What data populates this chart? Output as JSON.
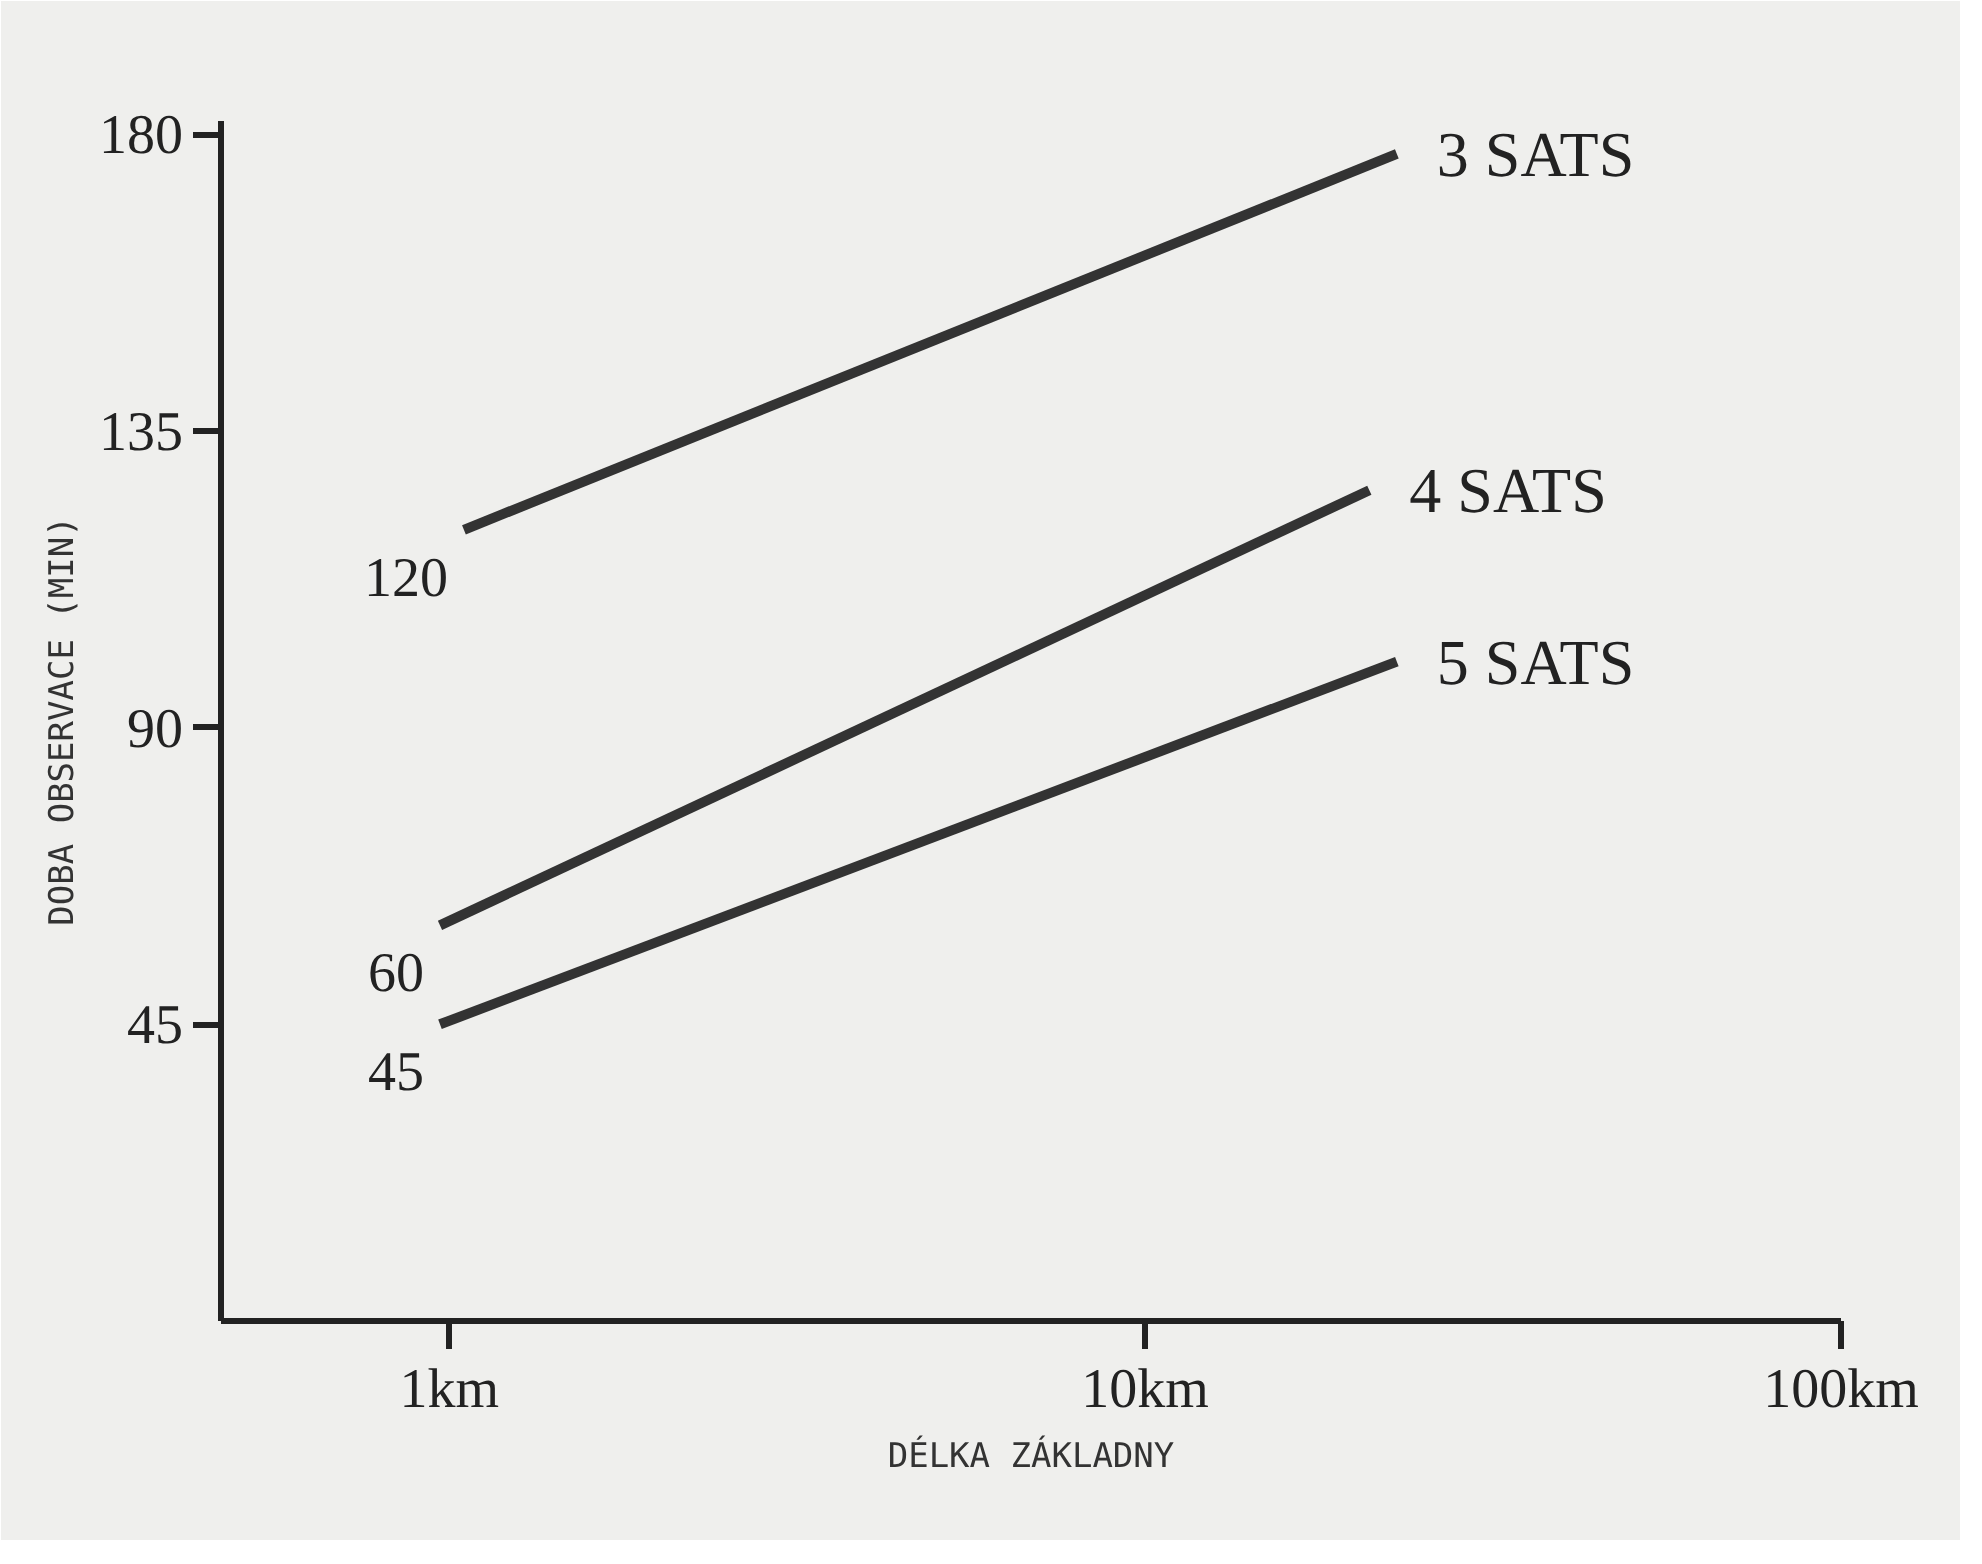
{
  "chart_data": {
    "type": "line",
    "xlabel": "DÉLKA ZÁKLADNY",
    "ylabel": "DOBA OBSERVACE (MIN)",
    "log": "x",
    "xlim": [
      0.47,
      100
    ],
    "xticks": [
      {
        "value": 1,
        "label": "1km"
      },
      {
        "value": 10,
        "label": "10km"
      },
      {
        "value": 100,
        "label": "100km"
      }
    ],
    "ylim": [
      0,
      182
    ],
    "yticks": [
      45,
      90,
      135,
      180
    ],
    "grid": false,
    "marker": "none",
    "line_style": "solid",
    "series": [
      {
        "name": "3 SATS",
        "color": "#333333",
        "x": [
          1.05,
          23
        ],
        "values": [
          120,
          177
        ],
        "value_labels": [
          "120",
          null
        ]
      },
      {
        "name": "4 SATS",
        "color": "#333333",
        "x": [
          0.97,
          21
        ],
        "values": [
          60,
          126
        ],
        "value_labels": [
          "60",
          null
        ]
      },
      {
        "name": "5 SATS",
        "color": "#333333",
        "x": [
          0.97,
          23
        ],
        "values": [
          45,
          100
        ],
        "value_labels": [
          "45",
          null
        ]
      }
    ]
  }
}
